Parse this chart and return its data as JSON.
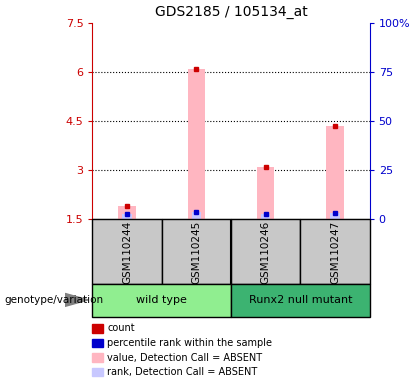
{
  "title": "GDS2185 / 105134_at",
  "samples": [
    "GSM110244",
    "GSM110245",
    "GSM110246",
    "GSM110247"
  ],
  "ylim_left": [
    1.5,
    7.5
  ],
  "ylim_right": [
    0,
    100
  ],
  "yticks_left": [
    1.5,
    3.0,
    4.5,
    6.0,
    7.5
  ],
  "ytick_labels_left": [
    "1.5",
    "3",
    "4.5",
    "6",
    "7.5"
  ],
  "yticks_right": [
    0,
    25,
    50,
    75,
    100
  ],
  "ytick_labels_right": [
    "0",
    "25",
    "50",
    "75",
    "100%"
  ],
  "value_bars": [
    1.9,
    6.1,
    3.1,
    4.35
  ],
  "rank_bars": [
    1.65,
    1.72,
    1.65,
    1.68
  ],
  "value_bar_color": "#FFB6C1",
  "rank_bar_color": "#C8C8FF",
  "count_marker_color": "#CC0000",
  "percentile_marker_color": "#0000CC",
  "bar_bottom": 1.5,
  "bar_width": 0.25,
  "legend_items": [
    {
      "color": "#CC0000",
      "label": "count"
    },
    {
      "color": "#0000CC",
      "label": "percentile rank within the sample"
    },
    {
      "color": "#FFB6C1",
      "label": "value, Detection Call = ABSENT"
    },
    {
      "color": "#C8C8FF",
      "label": "rank, Detection Call = ABSENT"
    }
  ],
  "group_label_prefix": "genotype/variation",
  "background_color": "#FFFFFF",
  "plot_bg_color": "#FFFFFF",
  "left_axis_color": "#CC0000",
  "right_axis_color": "#0000CC",
  "sample_box_color": "#C8C8C8",
  "wt_color": "#90EE90",
  "mutant_color": "#3CB371",
  "wild_type_label": "wild type",
  "mutant_label": "Runx2 null mutant"
}
